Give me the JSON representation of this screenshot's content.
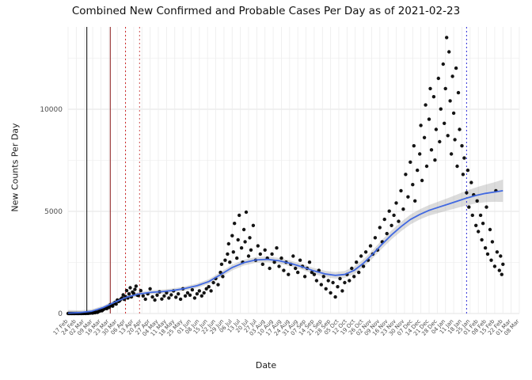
{
  "chart_data": {
    "type": "scatter",
    "title": "Combined New Confirmed and Probable Cases Per Day as of 2021-02-23",
    "xlabel": "Date",
    "ylabel": "New Counts Per Day",
    "y_ticks": [
      0,
      5000,
      10000
    ],
    "y_minor_ticks": [
      2500,
      7500,
      12500
    ],
    "ylim": [
      0,
      14030
    ],
    "x_domain_days": [
      0,
      385
    ],
    "x_tick_interval_days": 7,
    "x_tick_labels": [
      "17 Feb",
      "24 Feb",
      "02 Mar",
      "09 Mar",
      "16 Mar",
      "23 Mar",
      "30 Mar",
      "06 Apr",
      "13 Apr",
      "20 Apr",
      "27 Apr",
      "04 May",
      "11 May",
      "18 May",
      "25 May",
      "01 Jun",
      "08 Jun",
      "15 Jun",
      "22 Jun",
      "29 Jun",
      "06 Jul",
      "13 Jul",
      "20 Jul",
      "27 Jul",
      "03 Aug",
      "10 Aug",
      "17 Aug",
      "24 Aug",
      "31 Aug",
      "07 Sep",
      "14 Sep",
      "21 Sep",
      "28 Sep",
      "05 Oct",
      "12 Oct",
      "19 Oct",
      "26 Oct",
      "02 Nov",
      "09 Nov",
      "16 Nov",
      "23 Nov",
      "30 Nov",
      "07 Dec",
      "14 Dec",
      "21 Dec",
      "28 Dec",
      "04 Jan",
      "11 Jan",
      "18 Jan",
      "25 Jan",
      "01 Feb",
      "08 Feb",
      "15 Feb",
      "22 Feb",
      "01 Mar",
      "08 Mar"
    ],
    "legend": "none",
    "grid": "on",
    "colors": {
      "point": "#000000",
      "smooth_line": "#4169e1",
      "band": "#9a9a9a",
      "band_opacity": 0.35,
      "grid_major": "#e3e3e3",
      "grid_minor": "#f1f1f1",
      "axis_text": "#4d4d4d",
      "title_text": "#111111"
    },
    "reference_lines": [
      {
        "day": 16,
        "color": "#000000",
        "style": "solid"
      },
      {
        "day": 36,
        "color": "#8b1a1a",
        "style": "solid"
      },
      {
        "day": 49,
        "color": "#cd2626",
        "style": "dotted"
      },
      {
        "day": 61,
        "color": "#cd5555",
        "style": "dotted"
      },
      {
        "day": 340,
        "color": "#2c2cd6",
        "style": "dotted"
      }
    ],
    "smooth": [
      [
        0,
        20,
        150
      ],
      [
        10,
        45,
        110
      ],
      [
        20,
        110,
        95
      ],
      [
        30,
        290,
        95
      ],
      [
        40,
        560,
        100
      ],
      [
        50,
        800,
        100
      ],
      [
        60,
        950,
        100
      ],
      [
        70,
        1030,
        100
      ],
      [
        80,
        1070,
        100
      ],
      [
        90,
        1130,
        100
      ],
      [
        100,
        1230,
        105
      ],
      [
        110,
        1360,
        110
      ],
      [
        120,
        1560,
        120
      ],
      [
        130,
        1900,
        130
      ],
      [
        140,
        2250,
        140
      ],
      [
        150,
        2490,
        140
      ],
      [
        160,
        2620,
        140
      ],
      [
        170,
        2650,
        140
      ],
      [
        180,
        2580,
        140
      ],
      [
        190,
        2450,
        140
      ],
      [
        200,
        2280,
        140
      ],
      [
        210,
        2080,
        145
      ],
      [
        220,
        1930,
        155
      ],
      [
        228,
        1870,
        160
      ],
      [
        236,
        1910,
        170
      ],
      [
        244,
        2110,
        180
      ],
      [
        252,
        2460,
        190
      ],
      [
        260,
        2910,
        200
      ],
      [
        268,
        3400,
        210
      ],
      [
        276,
        3850,
        220
      ],
      [
        284,
        4250,
        230
      ],
      [
        292,
        4600,
        240
      ],
      [
        300,
        4850,
        250
      ],
      [
        308,
        5050,
        260
      ],
      [
        316,
        5200,
        280
      ],
      [
        324,
        5350,
        300
      ],
      [
        332,
        5500,
        330
      ],
      [
        340,
        5650,
        360
      ],
      [
        348,
        5780,
        390
      ],
      [
        356,
        5880,
        430
      ],
      [
        364,
        5950,
        480
      ],
      [
        371,
        6010,
        550
      ]
    ],
    "points": [
      [
        0,
        0
      ],
      [
        1,
        0
      ],
      [
        2,
        0
      ],
      [
        3,
        0
      ],
      [
        4,
        0
      ],
      [
        5,
        1
      ],
      [
        6,
        0
      ],
      [
        7,
        2
      ],
      [
        8,
        1
      ],
      [
        9,
        0
      ],
      [
        10,
        3
      ],
      [
        11,
        1
      ],
      [
        12,
        4
      ],
      [
        13,
        2
      ],
      [
        14,
        6
      ],
      [
        15,
        4
      ],
      [
        16,
        10
      ],
      [
        17,
        8
      ],
      [
        18,
        15
      ],
      [
        19,
        22
      ],
      [
        20,
        30
      ],
      [
        21,
        25
      ],
      [
        22,
        45
      ],
      [
        23,
        38
      ],
      [
        24,
        70
      ],
      [
        25,
        55
      ],
      [
        26,
        95
      ],
      [
        27,
        120
      ],
      [
        28,
        150
      ],
      [
        29,
        135
      ],
      [
        30,
        190
      ],
      [
        31,
        230
      ],
      [
        32,
        270
      ],
      [
        33,
        240
      ],
      [
        34,
        330
      ],
      [
        35,
        300
      ],
      [
        36,
        430
      ],
      [
        37,
        380
      ],
      [
        38,
        360
      ],
      [
        39,
        480
      ],
      [
        40,
        540
      ],
      [
        41,
        460
      ],
      [
        42,
        660
      ],
      [
        43,
        590
      ],
      [
        44,
        620
      ],
      [
        45,
        700
      ],
      [
        46,
        760
      ],
      [
        47,
        910
      ],
      [
        48,
        690
      ],
      [
        49,
        830
      ],
      [
        50,
        1120
      ],
      [
        51,
        760
      ],
      [
        52,
        960
      ],
      [
        53,
        1260
      ],
      [
        54,
        810
      ],
      [
        55,
        1050
      ],
      [
        56,
        980
      ],
      [
        57,
        1180
      ],
      [
        58,
        1340
      ],
      [
        59,
        900
      ],
      [
        60,
        880
      ],
      [
        62,
        1120
      ],
      [
        64,
        860
      ],
      [
        66,
        700
      ],
      [
        68,
        960
      ],
      [
        70,
        1210
      ],
      [
        72,
        810
      ],
      [
        74,
        660
      ],
      [
        76,
        900
      ],
      [
        78,
        1060
      ],
      [
        80,
        710
      ],
      [
        82,
        860
      ],
      [
        84,
        1010
      ],
      [
        86,
        760
      ],
      [
        88,
        910
      ],
      [
        90,
        1110
      ],
      [
        92,
        800
      ],
      [
        94,
        960
      ],
      [
        96,
        700
      ],
      [
        98,
        1210
      ],
      [
        100,
        860
      ],
      [
        102,
        1010
      ],
      [
        104,
        900
      ],
      [
        106,
        1160
      ],
      [
        108,
        760
      ],
      [
        110,
        960
      ],
      [
        112,
        1110
      ],
      [
        114,
        860
      ],
      [
        116,
        1010
      ],
      [
        118,
        1210
      ],
      [
        120,
        1310
      ],
      [
        122,
        1110
      ],
      [
        124,
        1510
      ],
      [
        126,
        1710
      ],
      [
        128,
        1410
      ],
      [
        130,
        2010
      ],
      [
        131,
        2410
      ],
      [
        132,
        1810
      ],
      [
        134,
        2610
      ],
      [
        136,
        2910
      ],
      [
        137,
        3410
      ],
      [
        138,
        2510
      ],
      [
        140,
        3810
      ],
      [
        141,
        3010
      ],
      [
        142,
        4410
      ],
      [
        144,
        2710
      ],
      [
        145,
        3610
      ],
      [
        146,
        4810
      ],
      [
        148,
        3210
      ],
      [
        149,
        2510
      ],
      [
        150,
        4110
      ],
      [
        151,
        3510
      ],
      [
        152,
        4960
      ],
      [
        154,
        2810
      ],
      [
        155,
        3710
      ],
      [
        156,
        3110
      ],
      [
        158,
        4310
      ],
      [
        160,
        2610
      ],
      [
        162,
        3310
      ],
      [
        164,
        2910
      ],
      [
        166,
        2410
      ],
      [
        168,
        3110
      ],
      [
        170,
        2710
      ],
      [
        172,
        2210
      ],
      [
        174,
        2910
      ],
      [
        176,
        2510
      ],
      [
        178,
        3210
      ],
      [
        180,
        2310
      ],
      [
        182,
        2710
      ],
      [
        184,
        2110
      ],
      [
        186,
        2510
      ],
      [
        188,
        1910
      ],
      [
        190,
        2410
      ],
      [
        192,
        2810
      ],
      [
        194,
        2210
      ],
      [
        196,
        2010
      ],
      [
        198,
        2610
      ],
      [
        200,
        2310
      ],
      [
        202,
        1810
      ],
      [
        204,
        2210
      ],
      [
        206,
        2510
      ],
      [
        208,
        2010
      ],
      [
        210,
        1910
      ],
      [
        212,
        1610
      ],
      [
        214,
        2110
      ],
      [
        216,
        1410
      ],
      [
        218,
        1810
      ],
      [
        220,
        1210
      ],
      [
        222,
        1610
      ],
      [
        224,
        1010
      ],
      [
        226,
        1510
      ],
      [
        228,
        810
      ],
      [
        230,
        1310
      ],
      [
        232,
        1710
      ],
      [
        234,
        1110
      ],
      [
        236,
        1510
      ],
      [
        238,
        1910
      ],
      [
        240,
        1610
      ],
      [
        242,
        2210
      ],
      [
        244,
        1810
      ],
      [
        246,
        2510
      ],
      [
        248,
        2010
      ],
      [
        250,
        2810
      ],
      [
        252,
        2310
      ],
      [
        254,
        3010
      ],
      [
        256,
        2610
      ],
      [
        258,
        3310
      ],
      [
        260,
        2910
      ],
      [
        262,
        3710
      ],
      [
        264,
        3110
      ],
      [
        266,
        4210
      ],
      [
        268,
        3510
      ],
      [
        270,
        4610
      ],
      [
        272,
        3910
      ],
      [
        274,
        5010
      ],
      [
        276,
        4310
      ],
      [
        278,
        4810
      ],
      [
        280,
        5410
      ],
      [
        282,
        4510
      ],
      [
        284,
        6010
      ],
      [
        286,
        5110
      ],
      [
        288,
        6810
      ],
      [
        290,
        5710
      ],
      [
        292,
        7410
      ],
      [
        294,
        6310
      ],
      [
        295,
        8210
      ],
      [
        296,
        5510
      ],
      [
        298,
        7010
      ],
      [
        300,
        7810
      ],
      [
        301,
        9210
      ],
      [
        302,
        6510
      ],
      [
        304,
        8610
      ],
      [
        305,
        10210
      ],
      [
        306,
        7210
      ],
      [
        308,
        9510
      ],
      [
        309,
        11010
      ],
      [
        310,
        8010
      ],
      [
        312,
        10610
      ],
      [
        313,
        7510
      ],
      [
        314,
        9010
      ],
      [
        316,
        11510
      ],
      [
        317,
        8410
      ],
      [
        318,
        10010
      ],
      [
        320,
        12210
      ],
      [
        321,
        9310
      ],
      [
        322,
        11010
      ],
      [
        323,
        13510
      ],
      [
        324,
        8710
      ],
      [
        325,
        12810
      ],
      [
        326,
        10410
      ],
      [
        327,
        7810
      ],
      [
        328,
        11610
      ],
      [
        329,
        9810
      ],
      [
        330,
        8510
      ],
      [
        331,
        12010
      ],
      [
        332,
        7210
      ],
      [
        333,
        10810
      ],
      [
        334,
        9010
      ],
      [
        336,
        8210
      ],
      [
        337,
        6810
      ],
      [
        338,
        7610
      ],
      [
        340,
        5910
      ],
      [
        341,
        7010
      ],
      [
        342,
        5210
      ],
      [
        344,
        6410
      ],
      [
        345,
        4810
      ],
      [
        346,
        5810
      ],
      [
        348,
        4310
      ],
      [
        349,
        5510
      ],
      [
        350,
        4010
      ],
      [
        352,
        4810
      ],
      [
        353,
        3610
      ],
      [
        354,
        4410
      ],
      [
        356,
        3210
      ],
      [
        357,
        5210
      ],
      [
        358,
        2910
      ],
      [
        360,
        4110
      ],
      [
        361,
        2610
      ],
      [
        362,
        3510
      ],
      [
        364,
        2310
      ],
      [
        365,
        6010
      ],
      [
        366,
        3010
      ],
      [
        368,
        2110
      ],
      [
        369,
        2810
      ],
      [
        370,
        1910
      ],
      [
        371,
        2410
      ]
    ]
  }
}
